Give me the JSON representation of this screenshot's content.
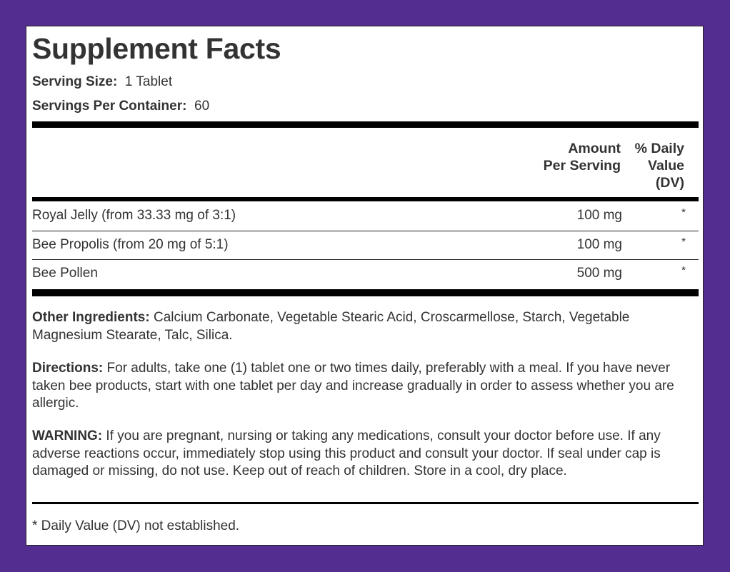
{
  "title": "Supplement Facts",
  "serving_size": {
    "label": "Serving Size:",
    "value": "1 Tablet"
  },
  "servings_per_container": {
    "label": "Servings Per Container:",
    "value": "60"
  },
  "headers": {
    "amount": [
      "Amount",
      "Per Serving"
    ],
    "dv": [
      "% Daily",
      "Value",
      "(DV)"
    ]
  },
  "rows": [
    {
      "name": "Royal Jelly (from 33.33 mg of 3:1)",
      "amount": "100 mg",
      "dv": "*"
    },
    {
      "name": "Bee Propolis (from 20 mg of 5:1)",
      "amount": "100 mg",
      "dv": "*"
    },
    {
      "name": "Bee Pollen",
      "amount": "500 mg",
      "dv": "*"
    }
  ],
  "other_ingredients": {
    "label": "Other Ingredients:",
    "text": " Calcium Carbonate, Vegetable Stearic Acid, Croscarmellose, Starch, Vegetable Magnesium Stearate, Talc, Silica."
  },
  "directions": {
    "label": "Directions:",
    "text": " For adults, take one (1) tablet one or two times daily, preferably with a meal. If you have never taken bee products, start with one tablet per day and increase gradually in order to assess whether you are allergic."
  },
  "warning": {
    "label": "WARNING:",
    "text": " If you are pregnant, nursing or taking any medications, consult your doctor before use. If any adverse reactions occur, immediately stop using this product and consult your doctor. If seal under cap is damaged or missing, do not use. Keep out of reach of children. Store in a cool, dry place."
  },
  "footnote": "* Daily Value (DV) not established.",
  "colors": {
    "background": "#532d8f",
    "panel": "#ffffff",
    "text": "#333333"
  }
}
